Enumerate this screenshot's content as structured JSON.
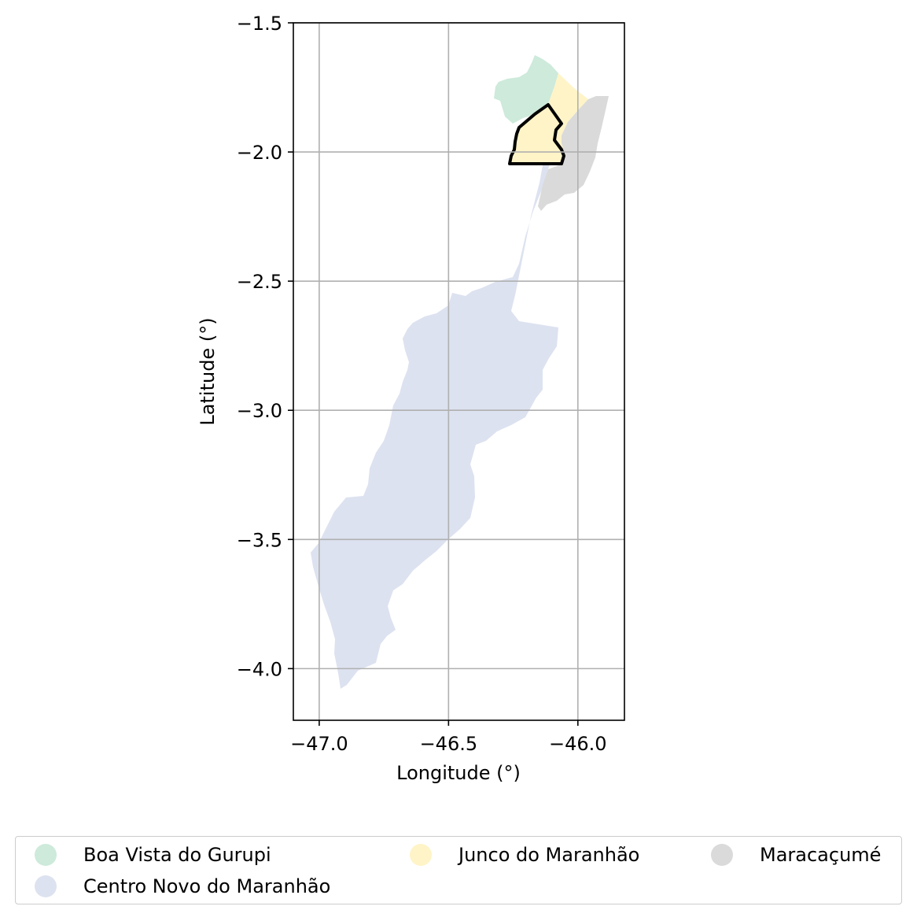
{
  "chart_data": {
    "type": "map",
    "title": "",
    "xlabel": "Longitude (°)",
    "ylabel": "Latitude (°)",
    "xlim": [
      -47.1,
      -45.82
    ],
    "ylim": [
      -4.2,
      -1.5
    ],
    "grid": true,
    "x_ticks": [
      -47.0,
      -46.5,
      -46.0
    ],
    "x_tick_labels": [
      "−47.0",
      "−46.5",
      "−46.0"
    ],
    "y_ticks": [
      -1.5,
      -2.0,
      -2.5,
      -3.0,
      -3.5,
      -4.0
    ],
    "y_tick_labels": [
      "−1.5",
      "−2.0",
      "−2.5",
      "−3.0",
      "−3.5",
      "−4.0"
    ],
    "regions": [
      {
        "name": "Boa Vista do Gurupi",
        "color": "#cdeadb"
      },
      {
        "name": "Centro Novo do Maranhão",
        "color": "#dde2f0"
      },
      {
        "name": "Junco do Maranhão",
        "color": "#fff4c7"
      },
      {
        "name": "Maracaçumé",
        "color": "#dadada"
      }
    ],
    "highlighted_region": "Junco do Maranhão",
    "legend_position": "bottom",
    "legend_columns": 3
  }
}
